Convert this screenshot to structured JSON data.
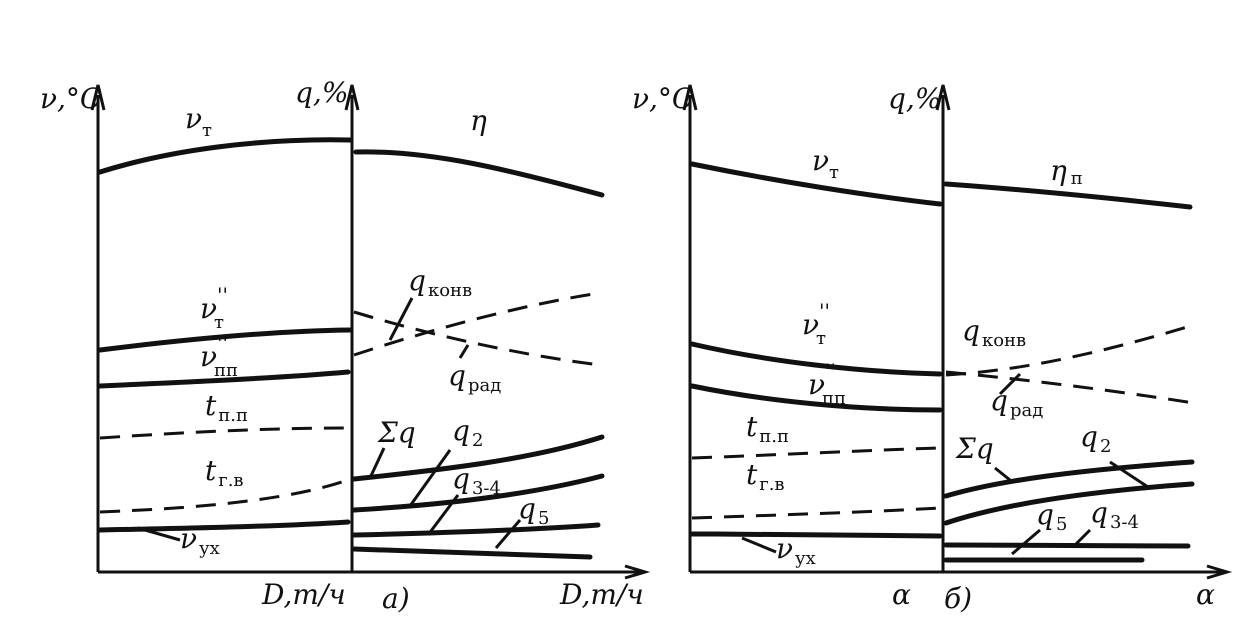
{
  "panel_a": {
    "caption": "а)",
    "left": {
      "y_axis_label": "ν,°C",
      "x_axis_label": "D,т/ч",
      "labels": {
        "nu_t": {
          "main": "ν",
          "sub": "т"
        },
        "nu_t_pp": {
          "main": "ν",
          "sup": "''",
          "sub": "т"
        },
        "nu_pp_pp": {
          "main": "ν",
          "sup": "''",
          "sub": "пп"
        },
        "t_pp": {
          "main": "t",
          "sub": "п.п"
        },
        "t_gv": {
          "main": "t",
          "sub": "г.в"
        },
        "nu_ux": {
          "main": "ν",
          "sub": "ух"
        }
      }
    },
    "right": {
      "y_axis_label": "q,%",
      "x_axis_label": "D,т/ч",
      "labels": {
        "eta": "η",
        "q_konv": {
          "main": "q",
          "sub": "конв"
        },
        "q_rad": {
          "main": "q",
          "sub": "рад"
        },
        "sum_q": "Σq",
        "q2": {
          "main": "q",
          "sub": "2"
        },
        "q34": {
          "main": "q",
          "sub": "3-4"
        },
        "q5": {
          "main": "q",
          "sub": "5"
        }
      }
    }
  },
  "panel_b": {
    "caption": "б)",
    "left": {
      "y_axis_label": "ν,°C",
      "x_axis_label": "α",
      "labels": {
        "nu_t": {
          "main": "ν",
          "sub": "т"
        },
        "nu_t_pp": {
          "main": "ν",
          "sup": "''",
          "sub": "т"
        },
        "nu_pp_pp": {
          "main": "ν",
          "sup": "''",
          "sub": "пп"
        },
        "t_pp": {
          "main": "t",
          "sub": "п.п"
        },
        "t_gv": {
          "main": "t",
          "sub": "г.в"
        },
        "nu_ux": {
          "main": "ν",
          "sub": "ух"
        }
      }
    },
    "right": {
      "y_axis_label": "q,%",
      "x_axis_label": "α",
      "labels": {
        "eta_p": {
          "main": "η",
          "sub": "п"
        },
        "q_konv": {
          "main": "q",
          "sub": "конв"
        },
        "q_rad": {
          "main": "q",
          "sub": "рад"
        },
        "sum_q": "Σq",
        "q2": {
          "main": "q",
          "sub": "2"
        },
        "q5": {
          "main": "q",
          "sub": "5"
        },
        "q34": {
          "main": "q",
          "sub": "3-4"
        }
      }
    }
  },
  "colors": {
    "ink": "#111111",
    "paper": "#ffffff"
  }
}
